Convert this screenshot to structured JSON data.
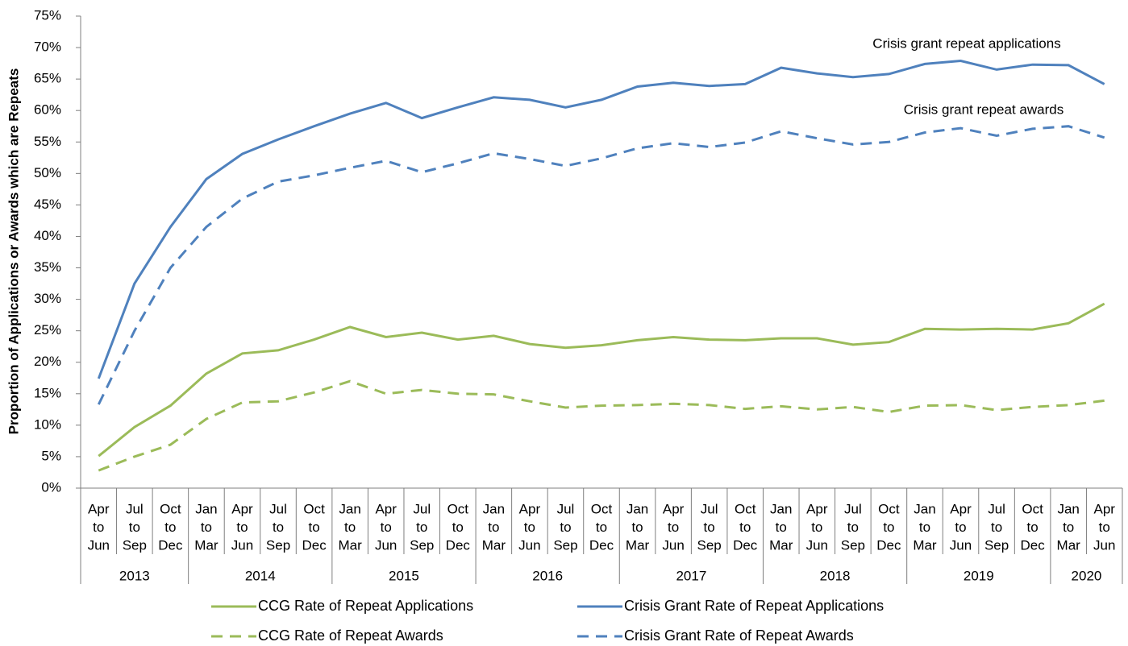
{
  "chart_data": {
    "type": "line",
    "y_label": "Proportion of Applications or Awards which are Repeats",
    "categories": [
      [
        "Apr",
        "to",
        "Jun"
      ],
      [
        "Jul",
        "to",
        "Sep"
      ],
      [
        "Oct",
        "to",
        "Dec"
      ],
      [
        "Jan",
        "to",
        "Mar"
      ],
      [
        "Apr",
        "to",
        "Jun"
      ],
      [
        "Jul",
        "to",
        "Sep"
      ],
      [
        "Oct",
        "to",
        "Dec"
      ],
      [
        "Jan",
        "to",
        "Mar"
      ],
      [
        "Apr",
        "to",
        "Jun"
      ],
      [
        "Jul",
        "to",
        "Sep"
      ],
      [
        "Oct",
        "to",
        "Dec"
      ],
      [
        "Jan",
        "to",
        "Mar"
      ],
      [
        "Apr",
        "to",
        "Jun"
      ],
      [
        "Jul",
        "to",
        "Sep"
      ],
      [
        "Oct",
        "to",
        "Dec"
      ],
      [
        "Jan",
        "to",
        "Mar"
      ],
      [
        "Apr",
        "to",
        "Jun"
      ],
      [
        "Jul",
        "to",
        "Sep"
      ],
      [
        "Oct",
        "to",
        "Dec"
      ],
      [
        "Jan",
        "to",
        "Mar"
      ],
      [
        "Apr",
        "to",
        "Jun"
      ],
      [
        "Jul",
        "to",
        "Sep"
      ],
      [
        "Oct",
        "to",
        "Dec"
      ],
      [
        "Jan",
        "to",
        "Mar"
      ],
      [
        "Apr",
        "to",
        "Jun"
      ],
      [
        "Jul",
        "to",
        "Sep"
      ],
      [
        "Oct",
        "to",
        "Dec"
      ],
      [
        "Jan",
        "to",
        "Mar"
      ],
      [
        "Apr",
        "to",
        "Jun"
      ]
    ],
    "years": [
      "2013",
      null,
      null,
      "2014",
      null,
      null,
      null,
      "2015",
      null,
      null,
      null,
      "2016",
      null,
      null,
      null,
      "2017",
      null,
      null,
      null,
      "2018",
      null,
      null,
      null,
      "2019",
      null,
      null,
      null,
      "2020",
      null
    ],
    "series": [
      {
        "name": "CCG Rate of Repeat Applications",
        "color": "#9bbb59",
        "dashed": false,
        "values": [
          5.1,
          9.7,
          13.1,
          18.2,
          21.4,
          21.9,
          23.6,
          25.6,
          24,
          24.7,
          23.6,
          24.2,
          22.9,
          22.3,
          22.7,
          23.5,
          24,
          23.6,
          23.5,
          23.8,
          23.8,
          22.8,
          23.2,
          25.3,
          25.2,
          25.3,
          25.2,
          26.2,
          29.3
        ]
      },
      {
        "name": "Crisis Grant Rate of Repeat Applications",
        "color": "#4f81bd",
        "dashed": false,
        "values": [
          17.4,
          32.5,
          41.5,
          49.1,
          53.1,
          55.4,
          57.5,
          59.5,
          61.2,
          58.8,
          60.5,
          62.1,
          61.7,
          60.5,
          61.7,
          63.8,
          64.4,
          63.9,
          64.2,
          66.8,
          65.9,
          65.3,
          65.8,
          67.4,
          67.9,
          66.5,
          67.3,
          67.2,
          64.2
        ]
      },
      {
        "name": "CCG Rate of Repeat Awards",
        "color": "#9bbb59",
        "dashed": true,
        "values": [
          2.8,
          5,
          6.9,
          11,
          13.6,
          13.8,
          15.2,
          17,
          15,
          15.6,
          15,
          14.9,
          13.8,
          12.8,
          13.1,
          13.2,
          13.4,
          13.2,
          12.6,
          13,
          12.5,
          12.9,
          12.1,
          13.1,
          13.2,
          12.4,
          12.9,
          13.2,
          13.9
        ]
      },
      {
        "name": "Crisis Grant Rate of Repeat Awards",
        "color": "#4f81bd",
        "dashed": true,
        "values": [
          13.3,
          25,
          35,
          41.5,
          46,
          48.7,
          49.7,
          50.9,
          52,
          50.2,
          51.6,
          53.2,
          52.3,
          51.2,
          52.4,
          54,
          54.8,
          54.2,
          54.9,
          56.7,
          55.6,
          54.6,
          55,
          56.5,
          57.2,
          56,
          57.1,
          57.5,
          55.7
        ]
      }
    ],
    "annotations": [
      "Crisis grant repeat applications",
      "Crisis grant repeat awards"
    ],
    "ylim": [
      0,
      75
    ],
    "yticks": [
      {
        "value": 0,
        "label": "0%"
      },
      {
        "value": 5,
        "label": "5%"
      },
      {
        "value": 10,
        "label": "10%"
      },
      {
        "value": 15,
        "label": "15%"
      },
      {
        "value": 20,
        "label": "20%"
      },
      {
        "value": 25,
        "label": "25%"
      },
      {
        "value": 30,
        "label": "30%"
      },
      {
        "value": 35,
        "label": "35%"
      },
      {
        "value": 40,
        "label": "40%"
      },
      {
        "value": 45,
        "label": "45%"
      },
      {
        "value": 50,
        "label": "50%"
      },
      {
        "value": 55,
        "label": "55%"
      },
      {
        "value": 60,
        "label": "60%"
      },
      {
        "value": 65,
        "label": "65%"
      },
      {
        "value": 70,
        "label": "70%"
      },
      {
        "value": 75,
        "label": "75%"
      }
    ],
    "grid": false,
    "legend": "bottom"
  }
}
